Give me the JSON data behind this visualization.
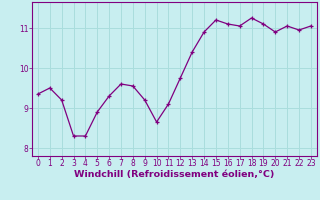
{
  "x": [
    0,
    1,
    2,
    3,
    4,
    5,
    6,
    7,
    8,
    9,
    10,
    11,
    12,
    13,
    14,
    15,
    16,
    17,
    18,
    19,
    20,
    21,
    22,
    23
  ],
  "y": [
    9.35,
    9.5,
    9.2,
    8.3,
    8.3,
    8.9,
    9.3,
    9.6,
    9.55,
    9.2,
    8.65,
    9.1,
    9.75,
    10.4,
    10.9,
    11.2,
    11.1,
    11.05,
    11.25,
    11.1,
    10.9,
    11.05,
    10.95,
    11.05
  ],
  "line_color": "#800080",
  "marker": "+",
  "bg_color": "#c8eef0",
  "grid_color": "#aadddd",
  "xlabel": "Windchill (Refroidissement éolien,°C)",
  "ylim": [
    7.8,
    11.65
  ],
  "xlim": [
    -0.5,
    23.5
  ],
  "yticks": [
    8,
    9,
    10,
    11
  ],
  "xticks": [
    0,
    1,
    2,
    3,
    4,
    5,
    6,
    7,
    8,
    9,
    10,
    11,
    12,
    13,
    14,
    15,
    16,
    17,
    18,
    19,
    20,
    21,
    22,
    23
  ],
  "tick_fontsize": 5.5,
  "xlabel_fontsize": 6.8
}
